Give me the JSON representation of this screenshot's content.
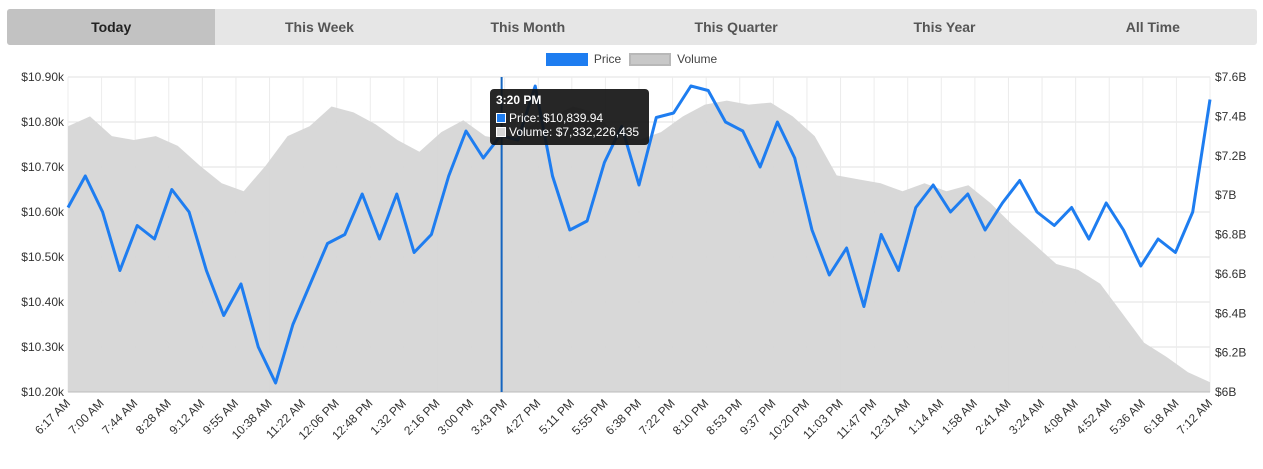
{
  "tabs": [
    {
      "label": "Today",
      "active": true
    },
    {
      "label": "This Week",
      "active": false
    },
    {
      "label": "This Month",
      "active": false
    },
    {
      "label": "This Quarter",
      "active": false
    },
    {
      "label": "This Year",
      "active": false
    },
    {
      "label": "All Time",
      "active": false
    }
  ],
  "colors": {
    "price": "#1e7df0",
    "volume": "#d6d6d6",
    "volume_legend": "#c8c8c8",
    "crosshair": "#1565c0"
  },
  "tooltip": {
    "title": "3:20 PM",
    "price_text": "Price: $10,839.94",
    "volume_text": "Volume: $7,332,226,435"
  },
  "chart_data": {
    "type": "line",
    "legend": [
      "Price",
      "Volume"
    ],
    "legend_position": "top-center",
    "grid": true,
    "y_left": {
      "ticks": [
        "$10.20k",
        "$10.30k",
        "$10.40k",
        "$10.50k",
        "$10.60k",
        "$10.70k",
        "$10.80k",
        "$10.90k"
      ],
      "range": [
        10200,
        10900
      ]
    },
    "y_right": {
      "ticks": [
        "$6B",
        "$6.2B",
        "$6.4B",
        "$6.6B",
        "$6.8B",
        "$7B",
        "$7.2B",
        "$7.4B",
        "$7.6B"
      ],
      "range": [
        6.0,
        7.6
      ]
    },
    "x_ticks": [
      "6:17 AM",
      "7:00 AM",
      "7:44 AM",
      "8:28 AM",
      "9:12 AM",
      "9:55 AM",
      "10:38 AM",
      "11:22 AM",
      "12:06 PM",
      "12:48 PM",
      "1:32 PM",
      "2:16 PM",
      "3:00 PM",
      "3:43 PM",
      "4:27 PM",
      "5:11 PM",
      "5:55 PM",
      "6:38 PM",
      "7:22 PM",
      "8:10 PM",
      "8:53 PM",
      "9:37 PM",
      "10:20 PM",
      "11:03 PM",
      "11:47 PM",
      "12:31 AM",
      "1:14 AM",
      "1:58 AM",
      "2:41 AM",
      "3:24 AM",
      "4:08 AM",
      "4:52 AM",
      "5:36 AM",
      "6:18 AM",
      "7:12 AM"
    ],
    "series": [
      {
        "name": "Price",
        "axis": "left",
        "values": [
          10610,
          10680,
          10600,
          10470,
          10570,
          10540,
          10650,
          10600,
          10470,
          10370,
          10440,
          10300,
          10220,
          10350,
          10440,
          10530,
          10550,
          10640,
          10540,
          10640,
          10510,
          10550,
          10680,
          10780,
          10720,
          10770,
          10760,
          10880,
          10680,
          10560,
          10580,
          10710,
          10790,
          10660,
          10810,
          10820,
          10880,
          10870,
          10800,
          10780,
          10700,
          10800,
          10720,
          10560,
          10460,
          10520,
          10390,
          10550,
          10470,
          10610,
          10660,
          10600,
          10640,
          10560,
          10620,
          10670,
          10600,
          10570,
          10610,
          10540,
          10620,
          10560,
          10480,
          10540,
          10510,
          10600,
          10850
        ]
      },
      {
        "name": "Volume",
        "axis": "right",
        "values": [
          7.35,
          7.4,
          7.3,
          7.28,
          7.3,
          7.25,
          7.15,
          7.06,
          7.02,
          7.15,
          7.3,
          7.35,
          7.45,
          7.42,
          7.36,
          7.28,
          7.22,
          7.32,
          7.38,
          7.3,
          7.28,
          7.35,
          7.4,
          7.45,
          7.42,
          7.3,
          7.28,
          7.32,
          7.4,
          7.46,
          7.48,
          7.46,
          7.47,
          7.4,
          7.3,
          7.1,
          7.08,
          7.06,
          7.02,
          7.06,
          7.02,
          7.05,
          6.96,
          6.85,
          6.75,
          6.65,
          6.62,
          6.55,
          6.4,
          6.25,
          6.18,
          6.1,
          6.05
        ]
      }
    ],
    "highlight": {
      "label": "3:20 PM",
      "price": 10839.94,
      "volume": 7332226435
    }
  }
}
